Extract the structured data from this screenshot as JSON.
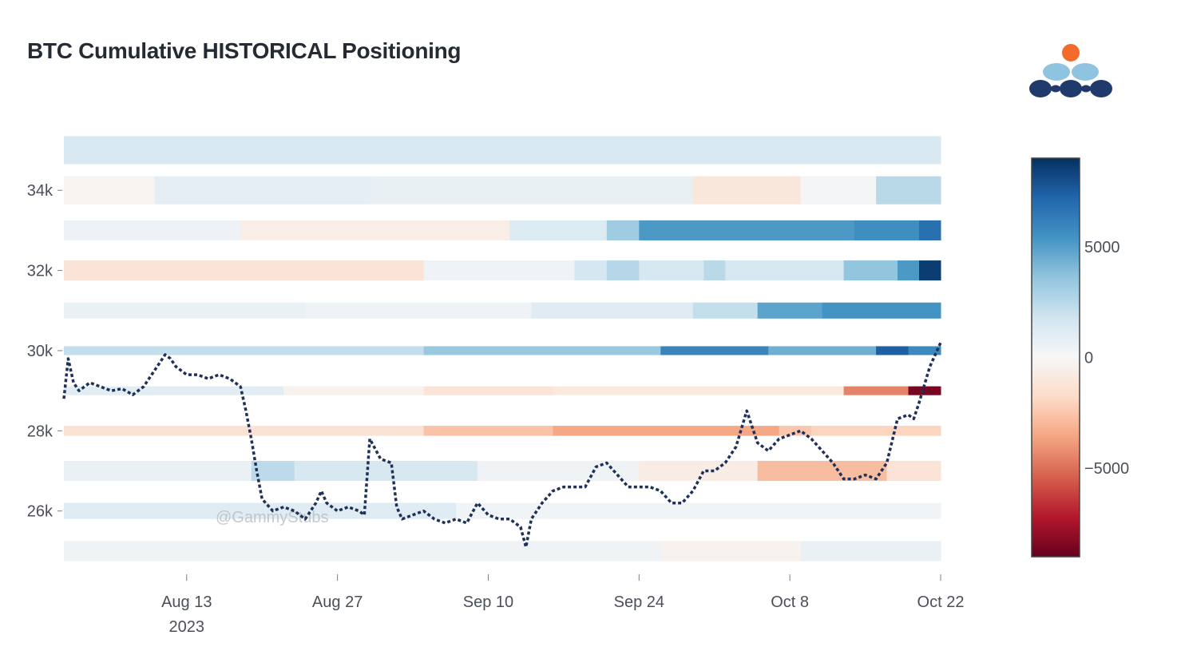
{
  "title": "BTC Cumulative HISTORICAL Positioning",
  "watermark": "@GammyStubs",
  "colors": {
    "line": "#1f3158",
    "title": "#262b33",
    "logo_orange": "#f26b2a",
    "logo_light_blue": "#8fc4e0",
    "logo_dark_blue": "#1f3a6b"
  },
  "chart_data": {
    "type": "heatmap",
    "title": "BTC Cumulative HISTORICAL Positioning",
    "xlabel": "",
    "ylabel": "",
    "x_ticks": [
      {
        "label": "Aug 13",
        "sub": "2023",
        "day": 13
      },
      {
        "label": "Aug 27",
        "sub": "",
        "day": 27
      },
      {
        "label": "Sep 10",
        "sub": "",
        "day": 41
      },
      {
        "label": "Sep 24",
        "sub": "",
        "day": 55
      },
      {
        "label": "Oct 8",
        "sub": "",
        "day": 69
      },
      {
        "label": "Oct 22",
        "sub": "",
        "day": 83
      }
    ],
    "xlim_days": [
      1.6,
      83
    ],
    "x_start_date": "Aug 1 2023",
    "y_ticks": [
      {
        "label": "26k",
        "value": 26000
      },
      {
        "label": "28k",
        "value": 28000
      },
      {
        "label": "30k",
        "value": 30000
      },
      {
        "label": "32k",
        "value": 32000
      },
      {
        "label": "34k",
        "value": 34000
      }
    ],
    "ylim": [
      24500,
      35200
    ],
    "colorscale": "RdBu",
    "zlim": [
      -9000,
      9000
    ],
    "colorbar_ticks": [
      {
        "label": "5000",
        "value": 5000
      },
      {
        "label": "0",
        "value": 0
      },
      {
        "label": "−5000",
        "value": -5000
      }
    ],
    "bands": [
      {
        "strike": 35000,
        "h": 700,
        "segments": [
          [
            1.6,
            83,
            1400
          ]
        ]
      },
      {
        "strike": 34000,
        "h": 700,
        "segments": [
          [
            1.6,
            10,
            -200
          ],
          [
            10,
            30,
            900
          ],
          [
            30,
            60,
            700
          ],
          [
            60,
            70,
            -1000
          ],
          [
            70,
            77,
            200
          ],
          [
            77,
            83,
            2500
          ]
        ]
      },
      {
        "strike": 33000,
        "h": 500,
        "segments": [
          [
            1.6,
            18,
            500
          ],
          [
            18,
            43,
            -600
          ],
          [
            43,
            52,
            1300
          ],
          [
            52,
            55,
            3200
          ],
          [
            55,
            75,
            5200
          ],
          [
            75,
            81,
            5600
          ],
          [
            81,
            83,
            6800
          ]
        ]
      },
      {
        "strike": 32000,
        "h": 500,
        "segments": [
          [
            1.6,
            35,
            -1200
          ],
          [
            35,
            49,
            400
          ],
          [
            49,
            52,
            1600
          ],
          [
            52,
            55,
            2600
          ],
          [
            55,
            61,
            1500
          ],
          [
            61,
            63,
            2500
          ],
          [
            63,
            74,
            1500
          ],
          [
            74,
            79,
            3600
          ],
          [
            79,
            81,
            5200
          ],
          [
            81,
            83,
            8600
          ]
        ]
      },
      {
        "strike": 31000,
        "h": 400,
        "segments": [
          [
            1.6,
            24,
            600
          ],
          [
            24,
            45,
            400
          ],
          [
            45,
            60,
            1100
          ],
          [
            60,
            66,
            2200
          ],
          [
            66,
            72,
            4800
          ],
          [
            72,
            83,
            5400
          ]
        ]
      },
      {
        "strike": 30000,
        "h": 220,
        "segments": [
          [
            1.6,
            35,
            2200
          ],
          [
            35,
            57,
            3400
          ],
          [
            57,
            67,
            6000
          ],
          [
            67,
            77,
            4400
          ],
          [
            77,
            80,
            7400
          ],
          [
            80,
            83,
            5800
          ]
        ]
      },
      {
        "strike": 29000,
        "h": 220,
        "segments": [
          [
            1.6,
            22,
            1000
          ],
          [
            22,
            35,
            -300
          ],
          [
            35,
            47,
            -1200
          ],
          [
            47,
            74,
            -900
          ],
          [
            74,
            80,
            -4500
          ],
          [
            80,
            83,
            -8600
          ]
        ]
      },
      {
        "strike": 28000,
        "h": 250,
        "segments": [
          [
            1.6,
            35,
            -1300
          ],
          [
            35,
            47,
            -2600
          ],
          [
            47,
            68,
            -3500
          ],
          [
            68,
            71,
            -2500
          ],
          [
            71,
            83,
            -2000
          ]
        ]
      },
      {
        "strike": 27000,
        "h": 500,
        "segments": [
          [
            1.6,
            19,
            600
          ],
          [
            19,
            23,
            2400
          ],
          [
            23,
            40,
            1500
          ],
          [
            40,
            55,
            400
          ],
          [
            55,
            66,
            -700
          ],
          [
            66,
            78,
            -2800
          ],
          [
            78,
            83,
            -1200
          ]
        ]
      },
      {
        "strike": 26000,
        "h": 400,
        "segments": [
          [
            1.6,
            38,
            1100
          ],
          [
            38,
            55,
            300
          ],
          [
            55,
            78,
            300
          ],
          [
            78,
            83,
            300
          ]
        ]
      },
      {
        "strike": 25000,
        "h": 500,
        "segments": [
          [
            1.6,
            57,
            400
          ],
          [
            57,
            70,
            -300
          ],
          [
            70,
            83,
            600
          ]
        ]
      }
    ],
    "series": [
      {
        "type": "dotted-line",
        "points": [
          [
            1.6,
            28800
          ],
          [
            2,
            29800
          ],
          [
            2.5,
            29200
          ],
          [
            3,
            29000
          ],
          [
            4,
            29200
          ],
          [
            5,
            29100
          ],
          [
            6,
            29000
          ],
          [
            7,
            29050
          ],
          [
            8,
            28900
          ],
          [
            9,
            29100
          ],
          [
            10,
            29500
          ],
          [
            11,
            29900
          ],
          [
            11.5,
            29800
          ],
          [
            12,
            29600
          ],
          [
            13,
            29400
          ],
          [
            14,
            29400
          ],
          [
            15,
            29300
          ],
          [
            16,
            29400
          ],
          [
            17,
            29300
          ],
          [
            18,
            29100
          ],
          [
            18.5,
            28500
          ],
          [
            19,
            27800
          ],
          [
            19.5,
            27000
          ],
          [
            20,
            26300
          ],
          [
            21,
            26000
          ],
          [
            22,
            26100
          ],
          [
            23,
            26000
          ],
          [
            24,
            25800
          ],
          [
            25,
            26200
          ],
          [
            25.5,
            26500
          ],
          [
            26,
            26200
          ],
          [
            27,
            26000
          ],
          [
            28,
            26100
          ],
          [
            29,
            26000
          ],
          [
            29.5,
            25900
          ],
          [
            30,
            27800
          ],
          [
            31,
            27300
          ],
          [
            32,
            27200
          ],
          [
            32.5,
            26100
          ],
          [
            33,
            25800
          ],
          [
            34,
            25900
          ],
          [
            35,
            26000
          ],
          [
            36,
            25800
          ],
          [
            37,
            25700
          ],
          [
            38,
            25800
          ],
          [
            39,
            25700
          ],
          [
            40,
            26200
          ],
          [
            41,
            25900
          ],
          [
            42,
            25800
          ],
          [
            43,
            25800
          ],
          [
            44,
            25600
          ],
          [
            44.5,
            25100
          ],
          [
            45,
            25800
          ],
          [
            46,
            26200
          ],
          [
            47,
            26500
          ],
          [
            48,
            26600
          ],
          [
            49,
            26600
          ],
          [
            50,
            26600
          ],
          [
            51,
            27100
          ],
          [
            52,
            27200
          ],
          [
            53,
            26900
          ],
          [
            54,
            26600
          ],
          [
            55,
            26600
          ],
          [
            56,
            26600
          ],
          [
            57,
            26500
          ],
          [
            58,
            26200
          ],
          [
            59,
            26200
          ],
          [
            60,
            26500
          ],
          [
            61,
            27000
          ],
          [
            62,
            27000
          ],
          [
            63,
            27200
          ],
          [
            64,
            27600
          ],
          [
            65,
            28500
          ],
          [
            66,
            27700
          ],
          [
            67,
            27500
          ],
          [
            68,
            27800
          ],
          [
            69,
            27900
          ],
          [
            70,
            28000
          ],
          [
            71,
            27800
          ],
          [
            72,
            27500
          ],
          [
            73,
            27200
          ],
          [
            74,
            26800
          ],
          [
            75,
            26800
          ],
          [
            76,
            26900
          ],
          [
            77,
            26800
          ],
          [
            78,
            27200
          ],
          [
            79,
            28300
          ],
          [
            80,
            28400
          ],
          [
            80.5,
            28300
          ],
          [
            81,
            28700
          ],
          [
            82,
            29600
          ],
          [
            83,
            30200
          ]
        ]
      }
    ]
  }
}
